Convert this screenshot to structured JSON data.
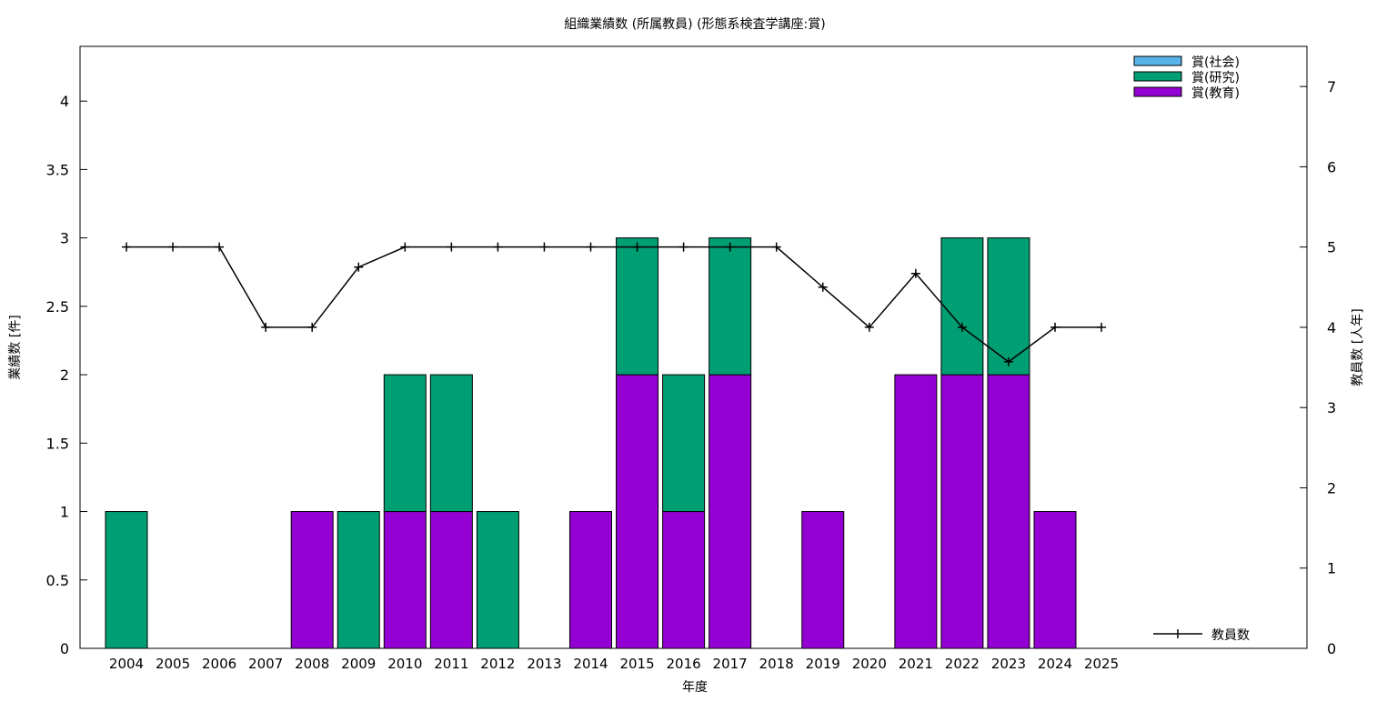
{
  "chart_data": {
    "type": "bar",
    "title": "組織業績数 (所属教員) (形態系検査学講座:賞)",
    "xlabel": "年度",
    "ylabel": "業績数 [件]",
    "y2label": "教員数 [人年]",
    "categories": [
      "2004",
      "2005",
      "2006",
      "2007",
      "2008",
      "2009",
      "2010",
      "2011",
      "2012",
      "2013",
      "2014",
      "2015",
      "2016",
      "2017",
      "2018",
      "2019",
      "2020",
      "2021",
      "2022",
      "2023",
      "2024",
      "2025"
    ],
    "ylim": [
      0,
      4.4
    ],
    "y2lim": [
      0,
      7.5
    ],
    "yticks": [
      "0",
      "0.5",
      "1",
      "1.5",
      "2",
      "2.5",
      "3",
      "3.5",
      "4"
    ],
    "y2ticks": [
      "0",
      "1",
      "2",
      "3",
      "4",
      "5",
      "6",
      "7"
    ],
    "stacked": true,
    "series": [
      {
        "name": "賞(教育)",
        "color": "#9400d3",
        "values": [
          0,
          0,
          0,
          0,
          1,
          0,
          1,
          1,
          0,
          0,
          1,
          2,
          1,
          2,
          0,
          1,
          0,
          2,
          2,
          2,
          1,
          0
        ]
      },
      {
        "name": "賞(研究)",
        "color": "#009e73",
        "values": [
          1,
          0,
          0,
          0,
          0,
          1,
          1,
          1,
          1,
          0,
          0,
          1,
          1,
          1,
          0,
          0,
          0,
          0,
          1,
          1,
          0,
          0
        ]
      },
      {
        "name": "賞(社会)",
        "color": "#56b4e9",
        "values": [
          0,
          0,
          0,
          0,
          0,
          0,
          0,
          0,
          0,
          0,
          0,
          0,
          0,
          0,
          0,
          0,
          0,
          0,
          0,
          0,
          0,
          0
        ]
      }
    ],
    "line_series": {
      "name": "教員数",
      "color": "#000000",
      "axis": "right",
      "values": [
        5,
        5,
        5,
        4,
        4,
        4.75,
        5,
        5,
        5,
        5,
        5,
        5,
        5,
        5,
        5,
        4.5,
        4,
        4.67,
        4,
        3.57,
        4,
        4
      ]
    },
    "legend_bars": "top-right",
    "legend_line": "bottom-right",
    "grid": false
  }
}
